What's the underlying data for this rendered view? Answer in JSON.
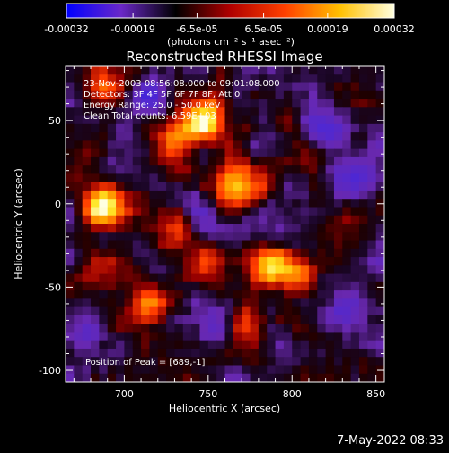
{
  "colorbar": {
    "tick_labels": [
      "-0.00032",
      "-0.00019",
      "-6.5e-05",
      "6.5e-05",
      "0.00019",
      "0.00032"
    ],
    "range": [
      -0.00032,
      0.00032
    ],
    "units_label": "(photons cm⁻² s⁻¹ asec⁻²)",
    "colors": [
      "#0000ff",
      "#6a28c8",
      "#000000",
      "#b00000",
      "#ff4000",
      "#ffc000",
      "#ffffe0"
    ]
  },
  "chart_data": {
    "type": "heatmap",
    "title": "Reconstructed RHESSI Image",
    "xlabel": "Heliocentric X (arcsec)",
    "ylabel": "Heliocentric Y (arcsec)",
    "xlim": [
      665,
      855
    ],
    "ylim": [
      -107,
      83
    ],
    "x_ticks": [
      700,
      750,
      800,
      850
    ],
    "y_ticks": [
      50,
      0,
      -50,
      -100
    ],
    "grid": false,
    "annotations": [
      "23-Nov-2003 08:56:08.000 to 09:01:08.000",
      "Detectors: 3F 4F 5F 6F 7F 8F, Att 0",
      "Energy Range: 25.0 - 50.0 keV",
      "Clean    Total counts: 6.59E+03"
    ],
    "peak_label": "Position of Peak = [689,-1]",
    "peak": [
      689,
      -1
    ],
    "hotspots": [
      {
        "x": 689,
        "y": -1,
        "value": 0.00032
      },
      {
        "x": 748,
        "y": 50,
        "value": 0.0003
      },
      {
        "x": 767,
        "y": 12,
        "value": 0.00026
      },
      {
        "x": 727,
        "y": 38,
        "value": 0.0002
      },
      {
        "x": 786,
        "y": -38,
        "value": 0.00022
      },
      {
        "x": 800,
        "y": -45,
        "value": 0.00018
      },
      {
        "x": 713,
        "y": -62,
        "value": 0.0002
      },
      {
        "x": 752,
        "y": -35,
        "value": 0.00016
      },
      {
        "x": 771,
        "y": -77,
        "value": 0.00018
      },
      {
        "x": 683,
        "y": -38,
        "value": 0.00012
      },
      {
        "x": 734,
        "y": -12,
        "value": 0.00014
      },
      {
        "x": 812,
        "y": 30,
        "value": 0.00012
      },
      {
        "x": 690,
        "y": 70,
        "value": 0.00014
      },
      {
        "x": 835,
        "y": -12,
        "value": 0.0001
      }
    ],
    "coldspots": [
      {
        "x": 820,
        "y": 45,
        "value": -0.0002
      },
      {
        "x": 742,
        "y": -4,
        "value": -0.00016
      },
      {
        "x": 834,
        "y": -63,
        "value": -0.00012
      },
      {
        "x": 757,
        "y": -70,
        "value": -0.00012
      },
      {
        "x": 713,
        "y": 65,
        "value": -0.00012
      },
      {
        "x": 838,
        "y": 12,
        "value": -0.00014
      },
      {
        "x": 676,
        "y": -80,
        "value": -8e-05
      }
    ]
  },
  "timestamp": "7-May-2022 08:33"
}
